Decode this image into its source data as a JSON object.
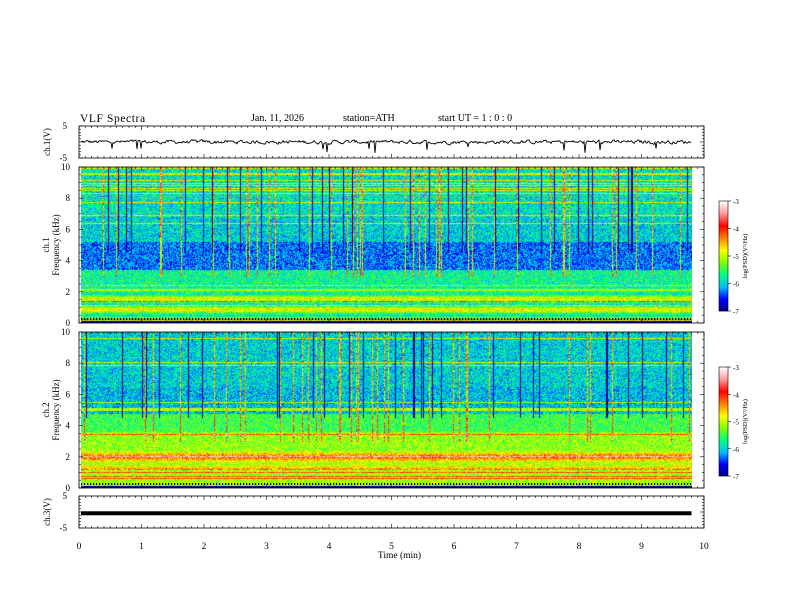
{
  "header": {
    "title": "VLF  Spectra",
    "date": "Jan. 11, 2026",
    "station": "station=ATH",
    "start_ut": "start  UT  =   1 : 0  : 0"
  },
  "chart_data": [
    {
      "id": "ch1",
      "type": "line",
      "ylabel": "ch.1(V)",
      "ylim": [
        -5,
        5
      ],
      "yticks": [
        "5",
        "-5"
      ],
      "baseline": 0,
      "xlim": [
        0,
        10
      ],
      "data_end_min": 9.8
    },
    {
      "id": "spec1",
      "type": "heatmap",
      "ylabel": "ch.1\nFrequency (kHz)",
      "ylabel_lines": [
        "ch.1",
        "Frequency  (kHz)"
      ],
      "yticks": [
        "0",
        "2",
        "4",
        "6",
        "8",
        "10"
      ],
      "ylim": [
        0,
        10
      ],
      "xlim": [
        0,
        10
      ],
      "data_end_min": 9.8,
      "colorbar": {
        "label": "log(PSD)(V²/Hz)",
        "ticks": [
          "-3",
          "-4",
          "-5",
          "-6",
          "-7"
        ],
        "range": [
          -7,
          -3
        ]
      }
    },
    {
      "id": "spec2",
      "type": "heatmap",
      "ylabel": "ch.2\nFrequency (kHz)",
      "ylabel_lines": [
        "ch.2",
        "Frequency  (kHz)"
      ],
      "yticks": [
        "0",
        "2",
        "4",
        "6",
        "8",
        "10"
      ],
      "ylim": [
        0,
        10
      ],
      "xlim": [
        0,
        10
      ],
      "data_end_min": 9.8,
      "colorbar": {
        "label": "log(PSD)(V²/Hz)",
        "ticks": [
          "-3",
          "-4",
          "-5",
          "-6",
          "-7"
        ],
        "range": [
          -7,
          -3
        ]
      }
    },
    {
      "id": "ch3",
      "type": "line",
      "ylabel": "ch.3(V)",
      "ylim": [
        -5,
        5
      ],
      "yticks": [
        "5",
        "-5"
      ],
      "baseline": -0.4,
      "xlim": [
        0,
        10
      ],
      "data_end_min": 9.8
    }
  ],
  "xaxis": {
    "label": "Time  (min)",
    "ticks": [
      "0",
      "1",
      "2",
      "3",
      "4",
      "5",
      "6",
      "7",
      "8",
      "9",
      "10"
    ],
    "range": [
      0,
      10
    ]
  },
  "colors": {
    "jet": [
      "#000080",
      "#0000ff",
      "#00bfff",
      "#00ff80",
      "#80ff00",
      "#ffff00",
      "#ff8000",
      "#ff0000",
      "#ff9999",
      "#ffffff"
    ]
  }
}
